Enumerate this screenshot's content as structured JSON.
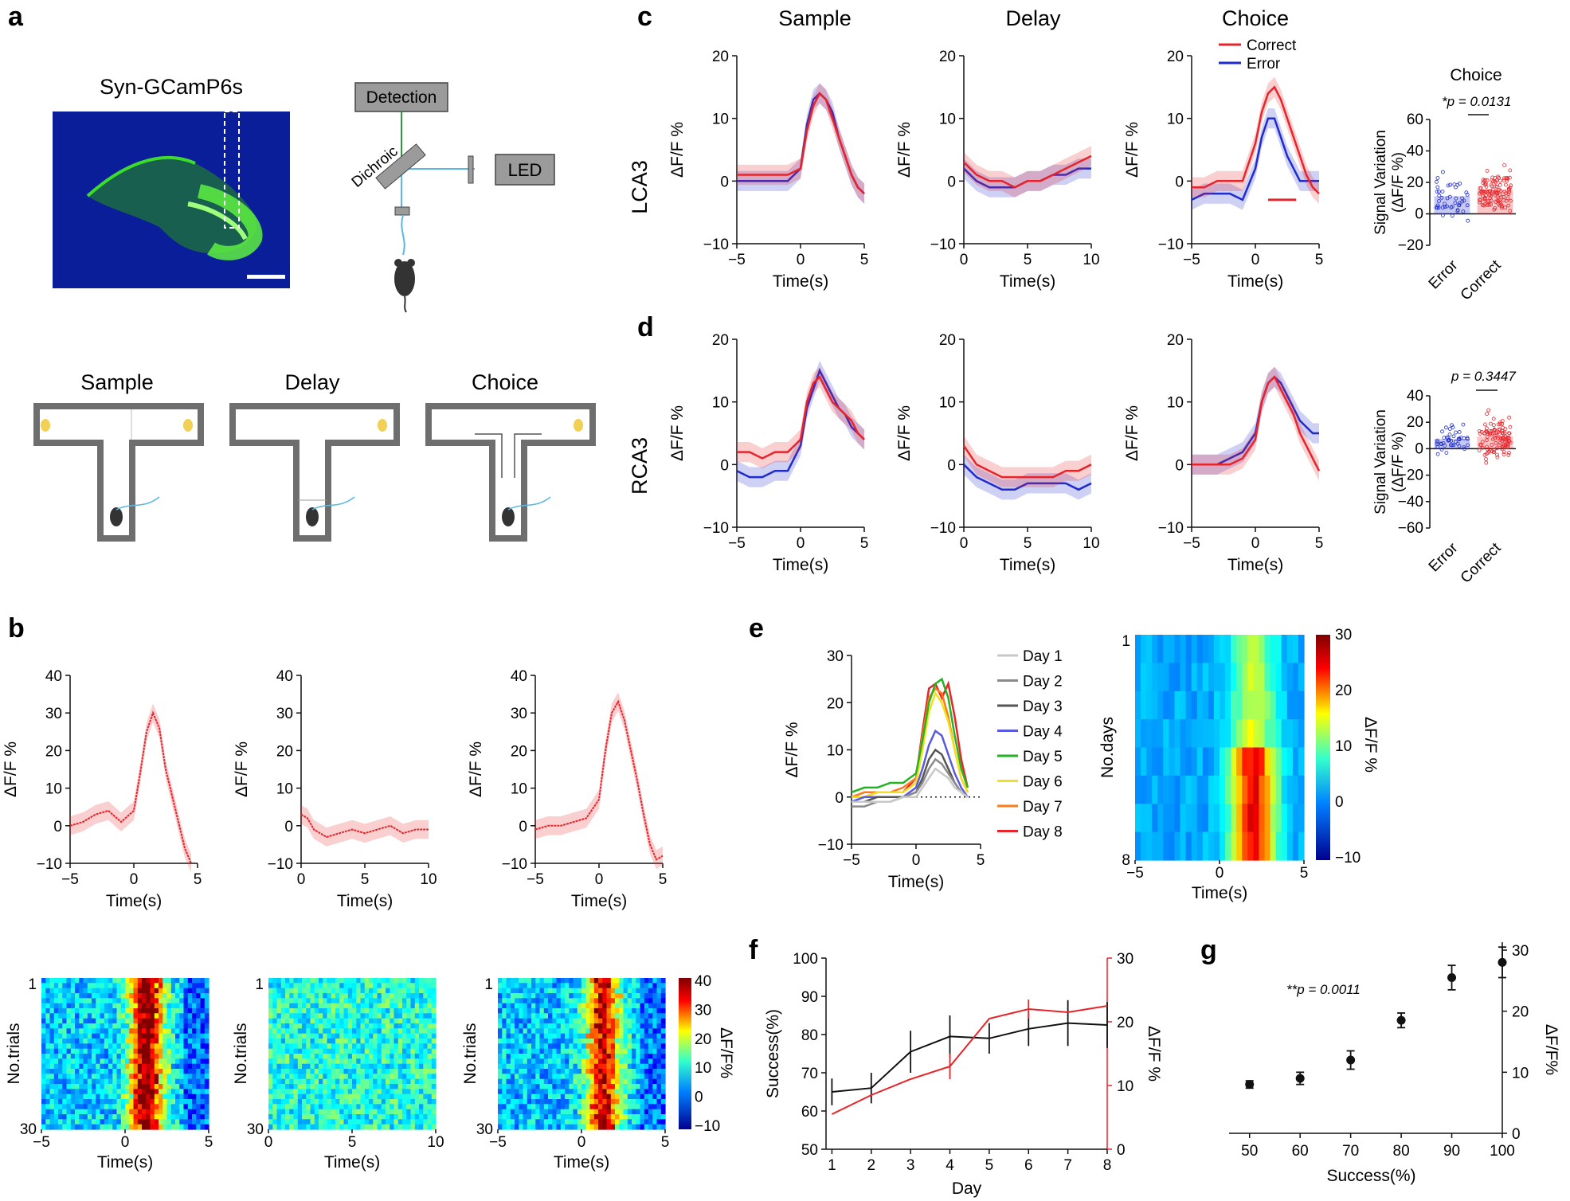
{
  "panels": {
    "a": "a",
    "b": "b",
    "c": "c",
    "d": "d",
    "e": "e",
    "f": "f",
    "g": "g"
  },
  "panel_a": {
    "image_title": "Syn-GCamP6s",
    "setup": {
      "detection": "Detection",
      "dichroic": "Dichroic",
      "led": "LED"
    },
    "phases": [
      "Sample",
      "Delay",
      "Choice"
    ],
    "colors": {
      "tissue_bg": "#0a1a8c",
      "gcamp": "#3ddc2a",
      "fiber": "#5ab8e0",
      "maze": "#6e6e6e"
    }
  },
  "units": {
    "time": "Time(s)",
    "dff": "ΔF/F %",
    "dff_trim": "ΔF/F%",
    "ntrials": "No.trials",
    "ndays": "No.days",
    "success": "Success(%)",
    "day": "Day",
    "signal_variation": "Signal Variation",
    "signal_variation_unit": "(ΔF/F %)"
  },
  "panel_b": {
    "line_color": "#e8242a",
    "heatmap_ticks": [
      "1",
      "30"
    ],
    "colorbar": [
      "40",
      "30",
      "20",
      "10",
      "0",
      "−10"
    ]
  },
  "panel_c": {
    "row_label": "LCA3",
    "col_titles": [
      "Sample",
      "Delay",
      "Choice"
    ],
    "legend": [
      "Correct",
      "Error"
    ],
    "bar_title": "Choice",
    "stat": "*p = 0.0131",
    "bar_categories": [
      "Error",
      "Correct"
    ],
    "colors": {
      "correct": "#e8242a",
      "error": "#1f2bcc"
    }
  },
  "panel_d": {
    "row_label": "RCA3",
    "stat": "p = 0.3447",
    "bar_categories": [
      "Error",
      "Correct"
    ]
  },
  "panel_e": {
    "legend": [
      "Day 1",
      "Day 2",
      "Day 3",
      "Day 4",
      "Day 5",
      "Day 6",
      "Day 7",
      "Day 8"
    ],
    "heatmap_ticks": [
      "1",
      "8"
    ],
    "colorbar": [
      "30",
      "20",
      "10",
      "0",
      "−10"
    ]
  },
  "panel_g": {
    "stat": "**p = 0.0011"
  },
  "chart_data": [
    {
      "id": "b-sample",
      "type": "line",
      "xlabel": "Time(s)",
      "ylabel": "ΔF/F %",
      "xlim": [
        -5,
        5
      ],
      "ylim": [
        -10,
        40
      ],
      "x": [
        -5,
        -4,
        -3,
        -2,
        -1,
        0,
        0.5,
        1,
        1.5,
        2,
        2.5,
        3,
        3.5,
        4,
        4.5
      ],
      "values": [
        0,
        1,
        3,
        4,
        1,
        4,
        14,
        25,
        30,
        26,
        15,
        8,
        1,
        -6,
        -10
      ]
    },
    {
      "id": "b-delay",
      "type": "line",
      "xlabel": "Time(s)",
      "ylabel": "ΔF/F %",
      "xlim": [
        0,
        10
      ],
      "ylim": [
        -10,
        40
      ],
      "x": [
        0,
        0.5,
        1,
        2,
        3,
        4,
        5,
        6,
        7,
        8,
        9,
        10
      ],
      "values": [
        3,
        2,
        -1,
        -3,
        -2,
        -1,
        -2,
        -1,
        0,
        -2,
        -1,
        -1
      ]
    },
    {
      "id": "b-choice",
      "type": "line",
      "xlabel": "Time(s)",
      "ylabel": "ΔF/F %",
      "xlim": [
        -5,
        5
      ],
      "ylim": [
        -10,
        40
      ],
      "x": [
        -5,
        -4,
        -3,
        -2,
        -1,
        0,
        0.5,
        1,
        1.5,
        2,
        2.5,
        3,
        3.5,
        4,
        4.5,
        5
      ],
      "values": [
        -1,
        0,
        0,
        1,
        2,
        7,
        20,
        30,
        33,
        28,
        20,
        12,
        3,
        -5,
        -9,
        -8
      ]
    },
    {
      "id": "c-sample",
      "type": "line",
      "xlim": [
        -5,
        5
      ],
      "ylim": [
        -10,
        20
      ],
      "x": [
        -5,
        -4,
        -3,
        -2,
        -1,
        0,
        0.5,
        1,
        1.5,
        2,
        2.5,
        3,
        3.5,
        4,
        4.5,
        5
      ],
      "series": [
        {
          "name": "Correct",
          "values": [
            1,
            1,
            1,
            1,
            1,
            2,
            8,
            12,
            14,
            13,
            10,
            7,
            4,
            1,
            -1,
            -2
          ]
        },
        {
          "name": "Error",
          "values": [
            0,
            0,
            0,
            0,
            0,
            2,
            9,
            13,
            14,
            13,
            11,
            7,
            4,
            1,
            -1,
            -2
          ]
        }
      ]
    },
    {
      "id": "c-delay",
      "type": "line",
      "xlim": [
        0,
        10
      ],
      "ylim": [
        -10,
        20
      ],
      "x": [
        0,
        1,
        2,
        3,
        4,
        5,
        6,
        7,
        8,
        9,
        10
      ],
      "series": [
        {
          "name": "Correct",
          "values": [
            3,
            1,
            0,
            0,
            -1,
            0,
            0,
            1,
            2,
            3,
            4
          ]
        },
        {
          "name": "Error",
          "values": [
            2,
            0,
            -1,
            -1,
            -1,
            0,
            0,
            1,
            1,
            2,
            2
          ]
        }
      ]
    },
    {
      "id": "c-choice",
      "type": "line",
      "xlim": [
        -5,
        5
      ],
      "ylim": [
        -10,
        20
      ],
      "x": [
        -5,
        -4,
        -3,
        -2,
        -1,
        0,
        0.5,
        1,
        1.5,
        2,
        2.5,
        3,
        3.5,
        4,
        4.5,
        5
      ],
      "series": [
        {
          "name": "Correct",
          "values": [
            -1,
            -1,
            0,
            0,
            0,
            6,
            11,
            14,
            15,
            13,
            10,
            7,
            4,
            1,
            -1,
            -2
          ]
        },
        {
          "name": "Error",
          "values": [
            -3,
            -2,
            -2,
            -2,
            -3,
            2,
            7,
            10,
            10,
            7,
            4,
            2,
            0,
            0,
            0,
            0
          ]
        }
      ],
      "significance_bar": [
        1,
        3.2
      ]
    },
    {
      "id": "c-bar",
      "type": "bar",
      "title": "Choice",
      "categories": [
        "Error",
        "Correct"
      ],
      "values": [
        11,
        15
      ],
      "ylim": [
        -20,
        60
      ],
      "yticks": [
        60,
        40,
        20,
        0,
        -20
      ]
    },
    {
      "id": "d-sample",
      "type": "line",
      "xlim": [
        -5,
        5
      ],
      "ylim": [
        -10,
        20
      ],
      "x": [
        -5,
        -4,
        -3,
        -2,
        -1,
        0,
        0.5,
        1,
        1.5,
        2,
        2.5,
        3,
        3.5,
        4,
        4.5,
        5
      ],
      "series": [
        {
          "name": "Correct",
          "values": [
            2,
            2,
            1,
            2,
            2,
            4,
            10,
            13,
            14,
            12,
            10,
            9,
            8,
            7,
            5,
            4
          ]
        },
        {
          "name": "Error",
          "values": [
            -1,
            -2,
            -2,
            -1,
            -1,
            3,
            9,
            12,
            15,
            13,
            11,
            9,
            8,
            6,
            5,
            4
          ]
        }
      ]
    },
    {
      "id": "d-delay",
      "type": "line",
      "xlim": [
        0,
        10
      ],
      "ylim": [
        -10,
        20
      ],
      "x": [
        0,
        1,
        2,
        3,
        4,
        5,
        6,
        7,
        8,
        9,
        10
      ],
      "series": [
        {
          "name": "Correct",
          "values": [
            3,
            0,
            -1,
            -2,
            -2,
            -2,
            -2,
            -2,
            -1,
            -1,
            0
          ]
        },
        {
          "name": "Error",
          "values": [
            0,
            -2,
            -3,
            -4,
            -4,
            -3,
            -3,
            -3,
            -3,
            -4,
            -3
          ]
        }
      ]
    },
    {
      "id": "d-choice",
      "type": "line",
      "xlim": [
        -5,
        5
      ],
      "ylim": [
        -10,
        20
      ],
      "x": [
        -5,
        -4,
        -3,
        -2,
        -1,
        0,
        0.5,
        1,
        1.5,
        2,
        2.5,
        3,
        3.5,
        4,
        4.5,
        5
      ],
      "series": [
        {
          "name": "Correct",
          "values": [
            0,
            0,
            0,
            0,
            1,
            4,
            10,
            13,
            14,
            12,
            10,
            8,
            5,
            3,
            1,
            -1
          ]
        },
        {
          "name": "Error",
          "values": [
            0,
            0,
            0,
            1,
            2,
            5,
            10,
            13,
            14,
            13,
            11,
            9,
            7,
            6,
            5,
            5
          ]
        }
      ]
    },
    {
      "id": "d-bar",
      "type": "bar",
      "categories": [
        "Error",
        "Correct"
      ],
      "values": [
        7,
        9
      ],
      "ylim": [
        -60,
        40
      ],
      "yticks": [
        40,
        20,
        0,
        -20,
        -40,
        -60
      ]
    },
    {
      "id": "e-line",
      "type": "line",
      "xlim": [
        -5,
        5
      ],
      "ylim": [
        -10,
        30
      ],
      "x": [
        -5,
        -4,
        -3,
        -2,
        -1,
        0,
        0.5,
        1,
        1.5,
        2,
        2.5,
        3,
        3.5,
        4
      ],
      "series": [
        {
          "name": "Day 1",
          "values": [
            -1,
            -1,
            -1,
            -1,
            0,
            0,
            2,
            4,
            6,
            5,
            4,
            2,
            1,
            0
          ]
        },
        {
          "name": "Day 2",
          "values": [
            -2,
            -2,
            -1,
            -1,
            0,
            1,
            3,
            6,
            8,
            7,
            5,
            3,
            1,
            0
          ]
        },
        {
          "name": "Day 3",
          "values": [
            -1,
            -1,
            0,
            0,
            0,
            1,
            4,
            8,
            10,
            9,
            6,
            3,
            1,
            0
          ]
        },
        {
          "name": "Day 4",
          "values": [
            -1,
            0,
            0,
            0,
            0,
            2,
            6,
            11,
            14,
            13,
            9,
            5,
            2,
            0
          ]
        },
        {
          "name": "Day 5",
          "values": [
            1,
            2,
            2,
            3,
            3,
            5,
            12,
            20,
            24,
            25,
            21,
            13,
            6,
            2
          ]
        },
        {
          "name": "Day 6",
          "values": [
            0,
            0,
            1,
            1,
            1,
            3,
            10,
            18,
            22,
            20,
            16,
            10,
            4,
            1
          ]
        },
        {
          "name": "Day 7",
          "values": [
            0,
            1,
            1,
            1,
            2,
            4,
            13,
            21,
            23,
            22,
            17,
            10,
            4,
            1
          ]
        },
        {
          "name": "Day 8",
          "values": [
            0,
            0,
            1,
            1,
            1,
            4,
            14,
            23,
            24,
            21,
            24,
            17,
            8,
            2
          ]
        }
      ]
    },
    {
      "id": "e-heatmap",
      "type": "heatmap",
      "xlim": [
        -5,
        5
      ],
      "rows": 8,
      "clim": [
        -10,
        30
      ]
    },
    {
      "id": "f",
      "type": "line",
      "xlabel": "Day",
      "x": [
        1,
        2,
        3,
        4,
        5,
        6,
        7,
        8
      ],
      "series": [
        {
          "name": "Success(%)",
          "axis": "left",
          "ylim": [
            50,
            100
          ],
          "values": [
            65,
            66,
            75.5,
            79.5,
            79,
            81.5,
            83,
            82.5
          ],
          "errors": [
            3.5,
            4,
            5.5,
            5.5,
            4,
            4.5,
            6,
            6
          ]
        },
        {
          "name": "ΔF/F %",
          "axis": "right",
          "ylim": [
            0,
            30
          ],
          "values": [
            5.5,
            8.5,
            11,
            13,
            20.5,
            22,
            21.5,
            22.5
          ],
          "errors": [
            0,
            0,
            0,
            2,
            0,
            1.5,
            0,
            0
          ]
        }
      ]
    },
    {
      "id": "g",
      "type": "scatter",
      "xlabel": "Success(%)",
      "ylabel": "ΔF/F%",
      "xlim": [
        50,
        100
      ],
      "ylim": [
        0,
        30
      ],
      "x": [
        50,
        60,
        70,
        80,
        90,
        100
      ],
      "values": [
        8,
        9,
        12,
        18.5,
        25.5,
        28
      ],
      "errors": [
        0.6,
        1,
        1.5,
        1.2,
        2,
        2.5
      ]
    }
  ]
}
